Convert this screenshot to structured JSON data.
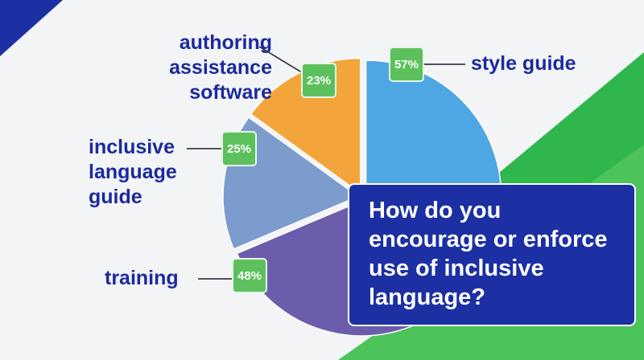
{
  "chart_data": {
    "type": "pie",
    "title": "How do you encourage or enforce use of inclusive language?",
    "categories": [
      "style guide",
      "training",
      "inclusive language guide",
      "authoring assistance software"
    ],
    "values": [
      57,
      48,
      25,
      23
    ],
    "value_labels": [
      "57%",
      "48%",
      "25%",
      "23%"
    ],
    "colors": [
      "#4ea7e2",
      "#6b5dab",
      "#7b9ccd",
      "#f3a53c"
    ]
  }
}
